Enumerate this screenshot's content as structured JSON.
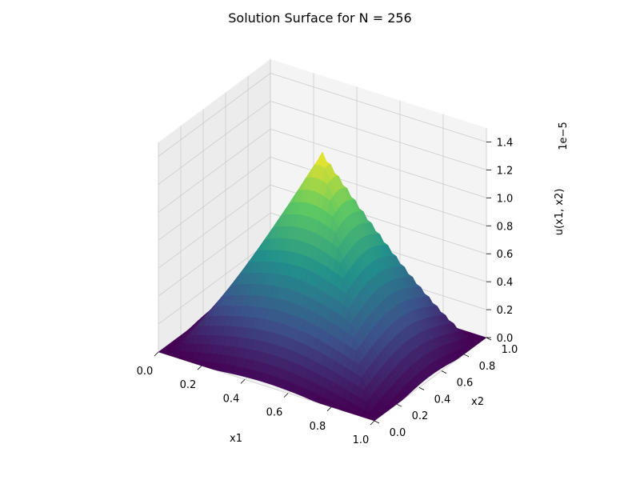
{
  "chart_data": {
    "type": "surface3d",
    "title": "Solution Surface for N = 256",
    "xlabel": "x1",
    "ylabel": "x2",
    "zlabel": "u(x1, x2)",
    "z_offset_label": "1e−5",
    "xlim": [
      0.0,
      1.0
    ],
    "ylim": [
      0.0,
      1.0
    ],
    "zlim": [
      0.0,
      1.5
    ],
    "z_scale": 1e-05,
    "x_ticks": [
      "0.0",
      "0.2",
      "0.4",
      "0.6",
      "0.8",
      "1.0"
    ],
    "y_ticks": [
      "0.0",
      "0.2",
      "0.4",
      "0.6",
      "0.8",
      "1.0"
    ],
    "z_ticks": [
      "0.0",
      "0.2",
      "0.4",
      "0.6",
      "0.8",
      "1.0",
      "1.2",
      "1.4"
    ],
    "z_max": 1.38,
    "surface_shape": "pyramid-like peak at (0.5, 0.5), zero on boundary",
    "colormap": "viridis",
    "grid": true,
    "pane_color": "#f2f2f2",
    "grid_color": "#cccccc"
  }
}
